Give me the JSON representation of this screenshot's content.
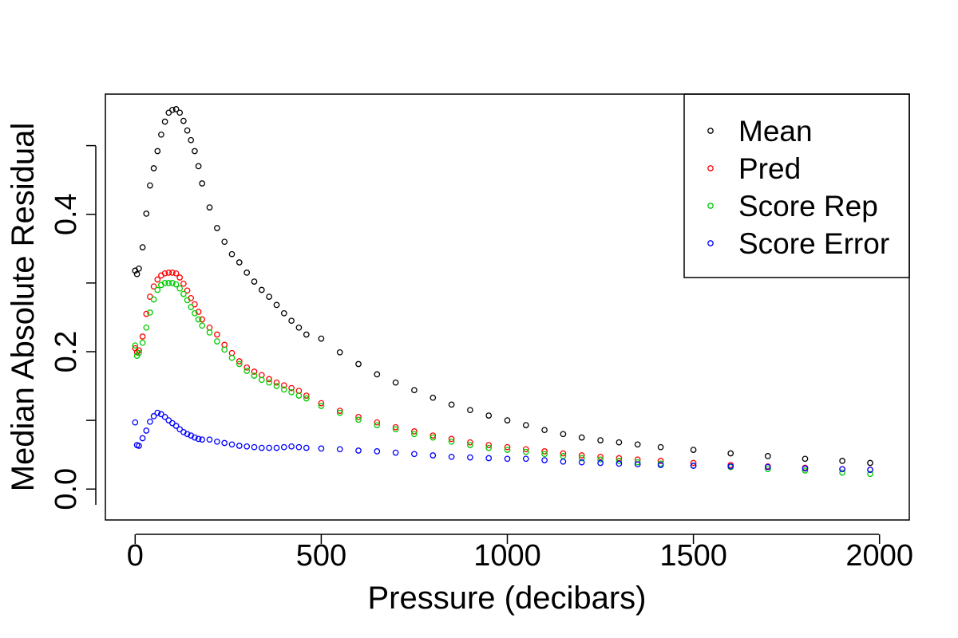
{
  "chart_data": {
    "type": "scatter",
    "title": "",
    "xlabel": "Pressure (decibars)",
    "ylabel": "Median Absolute Residual",
    "xlim": [
      -80,
      2080
    ],
    "ylim": [
      -0.045,
      0.575
    ],
    "x_ticks": [
      0,
      500,
      1000,
      1500,
      2000
    ],
    "x_tick_labels": [
      "0",
      "500",
      "1000",
      "1500",
      "2000"
    ],
    "y_ticks": [
      0.0,
      0.1,
      0.2,
      0.3,
      0.4,
      0.5
    ],
    "y_tick_labels": [
      "0.0",
      "",
      "0.2",
      "",
      "0.4",
      ""
    ],
    "grid": false,
    "legend_position": "top-right",
    "marker": "open-circle",
    "x": [
      0,
      5,
      10,
      20,
      30,
      40,
      50,
      60,
      70,
      80,
      90,
      100,
      110,
      120,
      130,
      140,
      150,
      160,
      170,
      180,
      200,
      220,
      240,
      260,
      280,
      300,
      320,
      340,
      360,
      380,
      400,
      420,
      440,
      460,
      500,
      550,
      600,
      650,
      700,
      750,
      800,
      850,
      900,
      950,
      1000,
      1050,
      1100,
      1150,
      1200,
      1250,
      1300,
      1350,
      1412,
      1500,
      1600,
      1700,
      1800,
      1900,
      1975
    ],
    "series": [
      {
        "name": "Mean",
        "color": "#000000",
        "values": [
          0.318,
          0.313,
          0.321,
          0.352,
          0.401,
          0.442,
          0.467,
          0.492,
          0.516,
          0.535,
          0.548,
          0.552,
          0.553,
          0.548,
          0.536,
          0.522,
          0.508,
          0.492,
          0.47,
          0.445,
          0.41,
          0.38,
          0.36,
          0.342,
          0.33,
          0.315,
          0.302,
          0.29,
          0.28,
          0.268,
          0.256,
          0.245,
          0.235,
          0.225,
          0.219,
          0.199,
          0.182,
          0.167,
          0.155,
          0.144,
          0.133,
          0.123,
          0.115,
          0.107,
          0.1,
          0.093,
          0.086,
          0.08,
          0.075,
          0.071,
          0.068,
          0.065,
          0.061,
          0.057,
          0.052,
          0.048,
          0.044,
          0.041,
          0.038
        ]
      },
      {
        "name": "Pred",
        "color": "#ff0000",
        "values": [
          0.205,
          0.199,
          0.202,
          0.222,
          0.255,
          0.28,
          0.295,
          0.305,
          0.311,
          0.314,
          0.315,
          0.315,
          0.314,
          0.308,
          0.299,
          0.289,
          0.278,
          0.269,
          0.258,
          0.247,
          0.235,
          0.225,
          0.21,
          0.198,
          0.186,
          0.177,
          0.171,
          0.166,
          0.16,
          0.155,
          0.151,
          0.147,
          0.143,
          0.136,
          0.125,
          0.114,
          0.105,
          0.097,
          0.09,
          0.084,
          0.078,
          0.073,
          0.068,
          0.064,
          0.061,
          0.058,
          0.055,
          0.052,
          0.049,
          0.047,
          0.045,
          0.043,
          0.041,
          0.038,
          0.035,
          0.033,
          0.031,
          0.029,
          0.028
        ]
      },
      {
        "name": "Score Rep",
        "color": "#00cc00",
        "values": [
          0.209,
          0.194,
          0.198,
          0.213,
          0.235,
          0.257,
          0.276,
          0.29,
          0.297,
          0.3,
          0.3,
          0.3,
          0.298,
          0.292,
          0.284,
          0.275,
          0.265,
          0.256,
          0.247,
          0.238,
          0.228,
          0.215,
          0.203,
          0.191,
          0.182,
          0.172,
          0.165,
          0.159,
          0.155,
          0.15,
          0.145,
          0.141,
          0.136,
          0.132,
          0.121,
          0.111,
          0.101,
          0.093,
          0.087,
          0.08,
          0.075,
          0.069,
          0.064,
          0.06,
          0.057,
          0.054,
          0.051,
          0.048,
          0.045,
          0.043,
          0.041,
          0.039,
          0.037,
          0.034,
          0.032,
          0.029,
          0.027,
          0.024,
          0.022
        ]
      },
      {
        "name": "Score Error",
        "color": "#0000ff",
        "values": [
          0.097,
          0.064,
          0.063,
          0.074,
          0.085,
          0.098,
          0.106,
          0.111,
          0.109,
          0.105,
          0.1,
          0.096,
          0.092,
          0.087,
          0.083,
          0.08,
          0.078,
          0.075,
          0.073,
          0.072,
          0.072,
          0.069,
          0.067,
          0.065,
          0.063,
          0.062,
          0.061,
          0.06,
          0.06,
          0.06,
          0.061,
          0.062,
          0.061,
          0.06,
          0.059,
          0.058,
          0.056,
          0.055,
          0.053,
          0.051,
          0.049,
          0.047,
          0.046,
          0.045,
          0.044,
          0.044,
          0.042,
          0.04,
          0.039,
          0.038,
          0.037,
          0.036,
          0.035,
          0.034,
          0.033,
          0.032,
          0.03,
          0.029,
          0.028
        ]
      }
    ]
  }
}
